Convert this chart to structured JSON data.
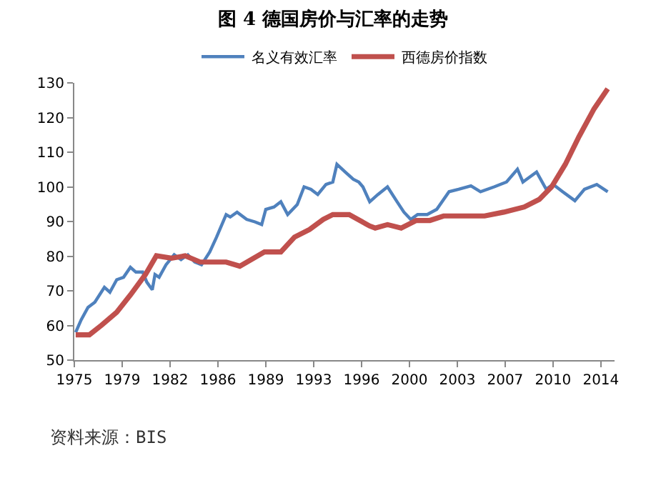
{
  "chart_data": {
    "type": "line",
    "title": "图 4 德国房价与汇率的走势",
    "xlim": [
      1975,
      2014.5
    ],
    "xticks": [
      1975,
      {
        "value": 1978.5,
        "label": "1979"
      },
      1982,
      {
        "value": 1985.5,
        "label": "1986"
      },
      1989,
      {
        "value": 1992.5,
        "label": "1993"
      },
      1996,
      {
        "value": 1999.5,
        "label": "2000"
      },
      2003,
      {
        "value": 2006.5,
        "label": "2007"
      },
      2010,
      {
        "value": 2013.5,
        "label": "2014"
      }
    ],
    "ylim": [
      50,
      130
    ],
    "yticks": [
      50,
      60,
      70,
      80,
      90,
      100,
      110,
      120,
      130
    ],
    "grid": false,
    "legend": "top",
    "marker": "none",
    "series": [
      {
        "name": "名义有效汇率",
        "color": "#4f81bd",
        "line_style": "solid",
        "x": [
          1975.1,
          1975.5,
          1976.0,
          1976.5,
          1977.2,
          1977.6,
          1978.1,
          1978.6,
          1979.1,
          1979.5,
          1980.0,
          1980.3,
          1980.7,
          1980.9,
          1981.2,
          1981.7,
          1982.3,
          1982.8,
          1983.3,
          1983.8,
          1984.3,
          1984.9,
          1985.4,
          1986.1,
          1986.4,
          1986.9,
          1987.6,
          1988.2,
          1988.7,
          1989.0,
          1989.6,
          1990.1,
          1990.6,
          1991.3,
          1991.8,
          1992.3,
          1992.8,
          1993.4,
          1993.9,
          1994.2,
          1994.8,
          1995.4,
          1995.8,
          1996.1,
          1996.6,
          1997.2,
          1997.9,
          1998.6,
          1999.1,
          1999.6,
          2000.1,
          2000.8,
          2001.5,
          2002.4,
          2003.1,
          2004.0,
          2004.7,
          2005.7,
          2006.6,
          2007.4,
          2007.8,
          2008.8,
          2009.5,
          2010.0,
          2010.7,
          2011.6,
          2012.3,
          2013.2,
          2014.0
        ],
        "values": [
          58.0,
          61.6,
          65.2,
          66.7,
          71.0,
          69.6,
          73.2,
          73.9,
          76.8,
          75.4,
          75.4,
          72.5,
          70.3,
          74.7,
          73.9,
          77.5,
          80.4,
          79.0,
          80.4,
          78.3,
          77.5,
          81.2,
          85.5,
          92.0,
          91.3,
          92.7,
          90.6,
          89.9,
          89.1,
          93.5,
          94.2,
          95.7,
          92.0,
          94.9,
          100.0,
          99.3,
          97.8,
          100.7,
          101.4,
          106.5,
          104.3,
          102.2,
          101.4,
          100.0,
          95.7,
          97.8,
          100.0,
          95.7,
          92.7,
          90.6,
          92.0,
          92.0,
          93.5,
          98.6,
          99.3,
          100.3,
          98.6,
          100.0,
          101.4,
          105.1,
          101.4,
          104.3,
          99.3,
          100.7,
          98.6,
          96.0,
          99.3,
          100.7,
          98.6
        ]
      },
      {
        "name": "西德房价指数",
        "color": "#c0504d",
        "line_style": "solid",
        "x": [
          1975.1,
          1976.1,
          1977.0,
          1978.1,
          1979.1,
          1980.2,
          1981.0,
          1982.1,
          1983.1,
          1984.2,
          1986.1,
          1987.1,
          1988.9,
          1990.1,
          1991.1,
          1992.2,
          1993.2,
          1993.9,
          1995.1,
          1996.6,
          1997.0,
          1997.9,
          1998.9,
          2000.0,
          2001.0,
          2002.0,
          2005.0,
          2006.4,
          2007.9,
          2009.0,
          2009.9,
          2010.9,
          2011.9,
          2013.0,
          2014.0
        ],
        "values": [
          57.3,
          57.3,
          60.1,
          63.8,
          68.8,
          74.7,
          80.1,
          79.4,
          80.1,
          78.3,
          78.3,
          77.1,
          81.2,
          81.2,
          85.5,
          87.7,
          90.6,
          92.0,
          92.0,
          88.7,
          88.1,
          89.1,
          88.1,
          90.3,
          90.3,
          91.6,
          91.6,
          92.7,
          94.2,
          96.4,
          100.0,
          106.5,
          114.5,
          122.5,
          128.3
        ]
      }
    ],
    "annotations": [
      "资料来源：BIS"
    ]
  }
}
